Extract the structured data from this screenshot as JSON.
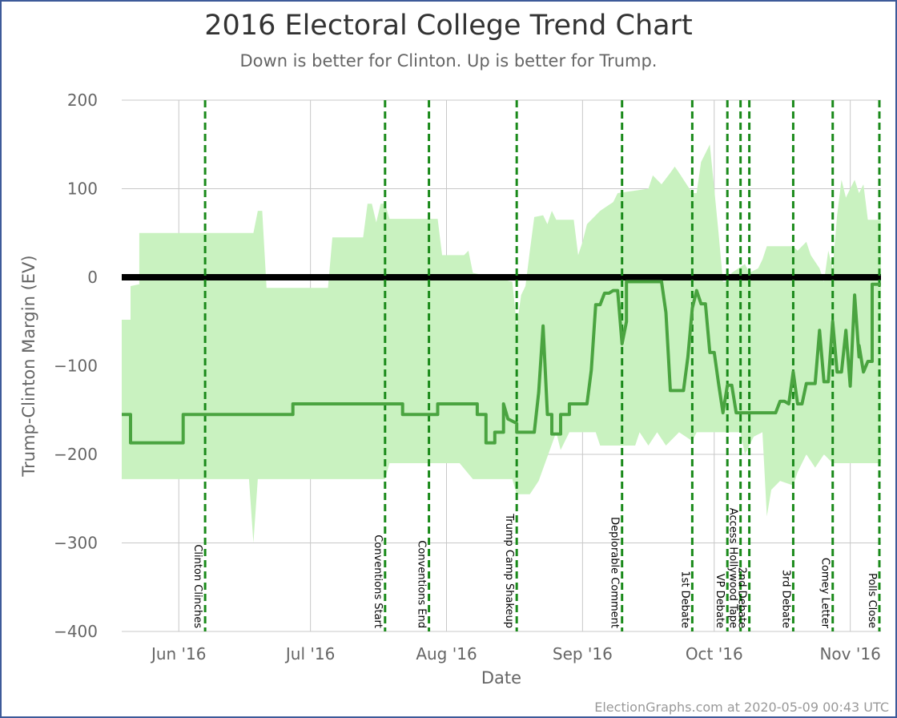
{
  "chart_data": {
    "type": "line",
    "title": "2016 Electoral College Trend Chart",
    "subtitle": "Down is better for Clinton. Up is better for Trump.",
    "xlabel": "Date",
    "ylabel": "Trump-Clinton Margin (EV)",
    "xlim": [
      "2016-05-19",
      "2016-11-08"
    ],
    "ylim": [
      -400,
      200
    ],
    "yticks": [
      200,
      100,
      0,
      -100,
      -200,
      -300,
      -400
    ],
    "ytick_labels": [
      "200",
      "100",
      "0",
      "−100",
      "−200",
      "−300",
      "−400"
    ],
    "xticks": [
      {
        "date": "2016-06-01",
        "label": "Jun '16"
      },
      {
        "date": "2016-07-01",
        "label": "Jul '16"
      },
      {
        "date": "2016-08-01",
        "label": "Aug '16"
      },
      {
        "date": "2016-09-01",
        "label": "Sep '16"
      },
      {
        "date": "2016-10-01",
        "label": "Oct '16"
      },
      {
        "date": "2016-11-01",
        "label": "Nov '16"
      }
    ],
    "grid": true,
    "colors": {
      "band": "#c9f2c0",
      "line": "#4aa440",
      "zero": "#000000",
      "event": "#1a8a1a",
      "grid": "#c8c8c8",
      "axis_text": "#666666"
    },
    "band": {
      "upper": [
        [
          "2016-05-19",
          -48
        ],
        [
          "2016-05-21",
          -48
        ],
        [
          "2016-05-21",
          -10
        ],
        [
          "2016-05-23",
          -8
        ],
        [
          "2016-05-23",
          50
        ],
        [
          "2016-06-18",
          50
        ],
        [
          "2016-06-19",
          75
        ],
        [
          "2016-06-20",
          75
        ],
        [
          "2016-06-21",
          -12
        ],
        [
          "2016-07-05",
          -12
        ],
        [
          "2016-07-06",
          45
        ],
        [
          "2016-07-13",
          45
        ],
        [
          "2016-07-14",
          83
        ],
        [
          "2016-07-15",
          83
        ],
        [
          "2016-07-16",
          62
        ],
        [
          "2016-07-17",
          83
        ],
        [
          "2016-07-18",
          83
        ],
        [
          "2016-07-19",
          66
        ],
        [
          "2016-07-30",
          66
        ],
        [
          "2016-07-31",
          25
        ],
        [
          "2016-08-05",
          25
        ],
        [
          "2016-08-06",
          30
        ],
        [
          "2016-08-07",
          5
        ],
        [
          "2016-08-16",
          -5
        ],
        [
          "2016-08-17",
          -55
        ],
        [
          "2016-08-18",
          -20
        ],
        [
          "2016-08-19",
          -10
        ],
        [
          "2016-08-20",
          30
        ],
        [
          "2016-08-21",
          68
        ],
        [
          "2016-08-23",
          70
        ],
        [
          "2016-08-24",
          60
        ],
        [
          "2016-08-25",
          75
        ],
        [
          "2016-08-26",
          65
        ],
        [
          "2016-08-30",
          65
        ],
        [
          "2016-08-31",
          25
        ],
        [
          "2016-09-01",
          40
        ],
        [
          "2016-09-02",
          60
        ],
        [
          "2016-09-05",
          75
        ],
        [
          "2016-09-08",
          85
        ],
        [
          "2016-09-09",
          95
        ],
        [
          "2016-09-16",
          100
        ],
        [
          "2016-09-17",
          115
        ],
        [
          "2016-09-19",
          105
        ],
        [
          "2016-09-21",
          118
        ],
        [
          "2016-09-22",
          125
        ],
        [
          "2016-09-23",
          118
        ],
        [
          "2016-09-26",
          95
        ],
        [
          "2016-09-27",
          95
        ],
        [
          "2016-09-28",
          130
        ],
        [
          "2016-09-29",
          140
        ],
        [
          "2016-09-30",
          150
        ],
        [
          "2016-10-01",
          100
        ],
        [
          "2016-10-02",
          50
        ],
        [
          "2016-10-03",
          -5
        ],
        [
          "2016-10-04",
          -5
        ],
        [
          "2016-10-05",
          5
        ],
        [
          "2016-10-08",
          15
        ],
        [
          "2016-10-09",
          5
        ],
        [
          "2016-10-11",
          10
        ],
        [
          "2016-10-12",
          20
        ],
        [
          "2016-10-13",
          35
        ],
        [
          "2016-10-19",
          35
        ],
        [
          "2016-10-20",
          30
        ],
        [
          "2016-10-22",
          40
        ],
        [
          "2016-10-23",
          25
        ],
        [
          "2016-10-25",
          10
        ],
        [
          "2016-10-26",
          -5
        ],
        [
          "2016-10-27",
          30
        ],
        [
          "2016-10-28",
          10
        ],
        [
          "2016-10-29",
          70
        ],
        [
          "2016-10-30",
          110
        ],
        [
          "2016-10-31",
          90
        ],
        [
          "2016-11-01",
          100
        ],
        [
          "2016-11-02",
          110
        ],
        [
          "2016-11-03",
          95
        ],
        [
          "2016-11-04",
          105
        ],
        [
          "2016-11-05",
          65
        ],
        [
          "2016-11-08",
          65
        ]
      ],
      "lower": [
        [
          "2016-05-19",
          -228
        ],
        [
          "2016-06-17",
          -228
        ],
        [
          "2016-06-18",
          -300
        ],
        [
          "2016-06-19",
          -228
        ],
        [
          "2016-07-18",
          -228
        ],
        [
          "2016-07-19",
          -210
        ],
        [
          "2016-08-04",
          -210
        ],
        [
          "2016-08-07",
          -228
        ],
        [
          "2016-08-16",
          -228
        ],
        [
          "2016-08-17",
          -245
        ],
        [
          "2016-08-20",
          -245
        ],
        [
          "2016-08-22",
          -230
        ],
        [
          "2016-08-26",
          -175
        ],
        [
          "2016-08-27",
          -195
        ],
        [
          "2016-08-29",
          -175
        ],
        [
          "2016-09-04",
          -175
        ],
        [
          "2016-09-05",
          -190
        ],
        [
          "2016-09-13",
          -190
        ],
        [
          "2016-09-14",
          -175
        ],
        [
          "2016-09-16",
          -190
        ],
        [
          "2016-09-18",
          -175
        ],
        [
          "2016-09-20",
          -190
        ],
        [
          "2016-09-23",
          -175
        ],
        [
          "2016-09-26",
          -185
        ],
        [
          "2016-09-27",
          -175
        ],
        [
          "2016-10-03",
          -175
        ],
        [
          "2016-10-07",
          -175
        ],
        [
          "2016-10-08",
          -200
        ],
        [
          "2016-10-10",
          -180
        ],
        [
          "2016-10-12",
          -175
        ],
        [
          "2016-10-13",
          -270
        ],
        [
          "2016-10-14",
          -240
        ],
        [
          "2016-10-16",
          -230
        ],
        [
          "2016-10-19",
          -235
        ],
        [
          "2016-10-20",
          -220
        ],
        [
          "2016-10-22",
          -200
        ],
        [
          "2016-10-24",
          -215
        ],
        [
          "2016-10-26",
          -200
        ],
        [
          "2016-10-28",
          -210
        ],
        [
          "2016-11-08",
          -210
        ]
      ]
    },
    "series": [
      {
        "points": [
          [
            "2016-05-19",
            -155
          ],
          [
            "2016-05-21",
            -155
          ],
          [
            "2016-05-21",
            -187
          ],
          [
            "2016-06-02",
            -187
          ],
          [
            "2016-06-02",
            -155
          ],
          [
            "2016-06-27",
            -155
          ],
          [
            "2016-06-27",
            -143
          ],
          [
            "2016-07-22",
            -143
          ],
          [
            "2016-07-22",
            -155
          ],
          [
            "2016-07-30",
            -155
          ],
          [
            "2016-07-30",
            -143
          ],
          [
            "2016-08-08",
            -143
          ],
          [
            "2016-08-08",
            -155
          ],
          [
            "2016-08-10",
            -155
          ],
          [
            "2016-08-10",
            -187
          ],
          [
            "2016-08-12",
            -187
          ],
          [
            "2016-08-12",
            -175
          ],
          [
            "2016-08-14",
            -175
          ],
          [
            "2016-08-14",
            -143
          ],
          [
            "2016-08-15",
            -160
          ],
          [
            "2016-08-17",
            -165
          ],
          [
            "2016-08-17",
            -175
          ],
          [
            "2016-08-21",
            -175
          ],
          [
            "2016-08-22",
            -130
          ],
          [
            "2016-08-23",
            -55
          ],
          [
            "2016-08-24",
            -155
          ],
          [
            "2016-08-25",
            -155
          ],
          [
            "2016-08-25",
            -177
          ],
          [
            "2016-08-27",
            -177
          ],
          [
            "2016-08-27",
            -155
          ],
          [
            "2016-08-29",
            -155
          ],
          [
            "2016-08-29",
            -143
          ],
          [
            "2016-09-02",
            -143
          ],
          [
            "2016-09-03",
            -105
          ],
          [
            "2016-09-04",
            -31
          ],
          [
            "2016-09-05",
            -31
          ],
          [
            "2016-09-06",
            -18
          ],
          [
            "2016-09-07",
            -18
          ],
          [
            "2016-09-08",
            -15
          ],
          [
            "2016-09-09",
            -15
          ],
          [
            "2016-09-10",
            -75
          ],
          [
            "2016-09-11",
            -50
          ],
          [
            "2016-09-11",
            -5
          ],
          [
            "2016-09-19",
            -5
          ],
          [
            "2016-09-20",
            -40
          ],
          [
            "2016-09-21",
            -128
          ],
          [
            "2016-09-24",
            -128
          ],
          [
            "2016-09-25",
            -90
          ],
          [
            "2016-09-26",
            -35
          ],
          [
            "2016-09-27",
            -15
          ],
          [
            "2016-09-28",
            -30
          ],
          [
            "2016-09-29",
            -30
          ],
          [
            "2016-09-30",
            -85
          ],
          [
            "2016-10-01",
            -85
          ],
          [
            "2016-10-02",
            -120
          ],
          [
            "2016-10-03",
            -153
          ],
          [
            "2016-10-04",
            -122
          ],
          [
            "2016-10-05",
            -122
          ],
          [
            "2016-10-06",
            -153
          ],
          [
            "2016-10-15",
            -153
          ],
          [
            "2016-10-16",
            -140
          ],
          [
            "2016-10-17",
            -140
          ],
          [
            "2016-10-18",
            -143
          ],
          [
            "2016-10-19",
            -107
          ],
          [
            "2016-10-20",
            -143
          ],
          [
            "2016-10-21",
            -143
          ],
          [
            "2016-10-22",
            -120
          ],
          [
            "2016-10-24",
            -120
          ],
          [
            "2016-10-25",
            -60
          ],
          [
            "2016-10-26",
            -118
          ],
          [
            "2016-10-27",
            -118
          ],
          [
            "2016-10-28",
            -50
          ],
          [
            "2016-10-29",
            -107
          ],
          [
            "2016-10-30",
            -107
          ],
          [
            "2016-10-31",
            -60
          ],
          [
            "2016-11-01",
            -123
          ],
          [
            "2016-11-02",
            -20
          ],
          [
            "2016-11-03",
            -90
          ],
          [
            "2016-11-03",
            -77
          ],
          [
            "2016-11-04",
            -107
          ],
          [
            "2016-11-05",
            -95
          ],
          [
            "2016-11-06",
            -95
          ],
          [
            "2016-11-06",
            -8
          ],
          [
            "2016-11-08",
            -8
          ]
        ]
      }
    ],
    "events": [
      {
        "date": "2016-06-07",
        "label": "Clinton Clinches"
      },
      {
        "date": "2016-07-18",
        "label": "Conventions Start"
      },
      {
        "date": "2016-07-28",
        "label": "Conventions End"
      },
      {
        "date": "2016-08-17",
        "label": "Trump Camp Shakeup"
      },
      {
        "date": "2016-09-10",
        "label": "Deplorable Comment"
      },
      {
        "date": "2016-09-26",
        "label": "1st Debate"
      },
      {
        "date": "2016-10-04",
        "label": "VP Debate"
      },
      {
        "date": "2016-10-07",
        "label": "Access Hollywood Tape"
      },
      {
        "date": "2016-10-09",
        "label": "2nd Debate"
      },
      {
        "date": "2016-10-19",
        "label": "3rd Debate"
      },
      {
        "date": "2016-10-28",
        "label": "Comey Letter"
      },
      {
        "date": "2016-11-08",
        "label": "Polls Close"
      }
    ]
  },
  "credit": "ElectionGraphs.com at 2020-05-09 00:43 UTC"
}
